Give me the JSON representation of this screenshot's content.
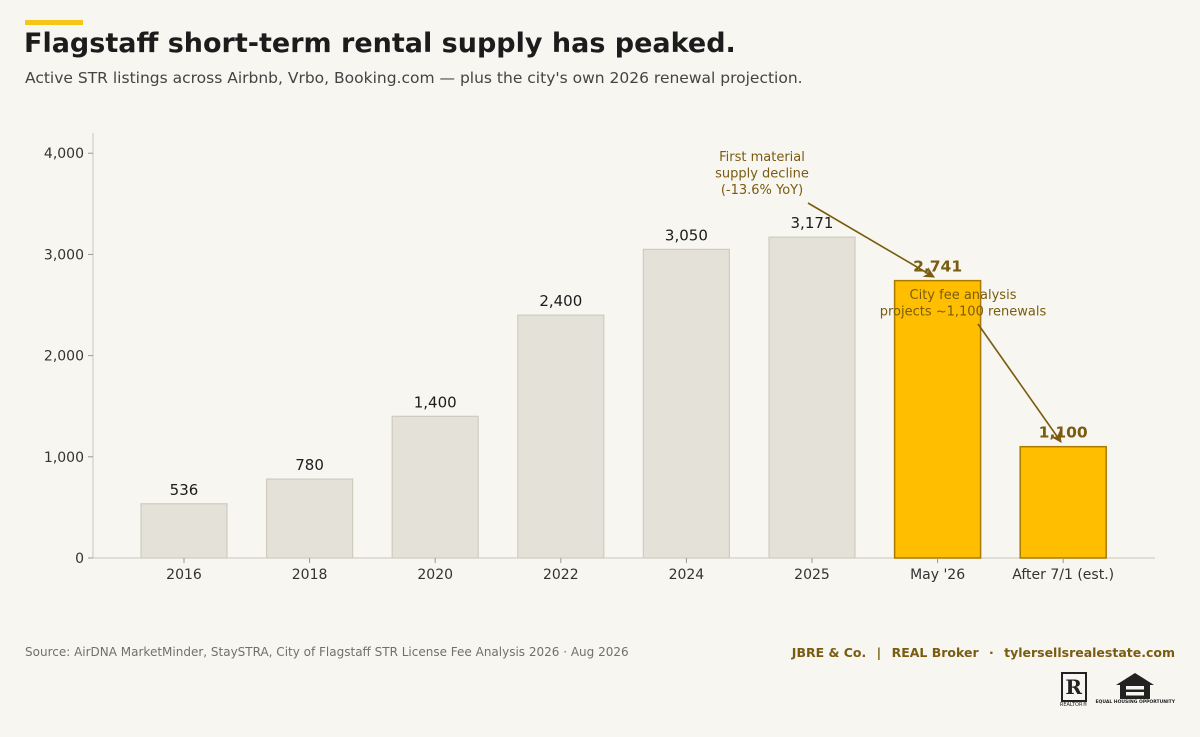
{
  "header": {
    "title": "Flagstaff short-term rental supply has peaked.",
    "subtitle": "Active STR listings across Airbnb, Vrbo, Booking.com — plus the city's own 2026 renewal projection."
  },
  "chart_data": {
    "type": "bar",
    "categories": [
      "2016",
      "2018",
      "2020",
      "2022",
      "2024",
      "2025",
      "May '26",
      "After 7/1 (est.)"
    ],
    "values": [
      536,
      780,
      1400,
      2400,
      3050,
      3171,
      2741,
      1100
    ],
    "value_labels": [
      "536",
      "780",
      "1,400",
      "2,400",
      "3,050",
      "3,171",
      "2,741",
      "1,100"
    ],
    "highlighted": [
      false,
      false,
      false,
      false,
      false,
      false,
      true,
      true
    ],
    "ylim": [
      0,
      4200
    ],
    "yticks": [
      0,
      1000,
      2000,
      3000,
      4000
    ],
    "ytick_labels": [
      "0",
      "1,000",
      "2,000",
      "3,000",
      "4,000"
    ],
    "grid": false,
    "annotations": [
      {
        "lines": [
          "First material",
          "supply decline",
          "(-13.6% YoY)"
        ],
        "target_category": "May '26"
      },
      {
        "lines": [
          "City fee analysis",
          "projects ~1,100 renewals"
        ],
        "target_category": "After 7/1 (est.)"
      }
    ]
  },
  "footer": {
    "source": "Source: AirDNA MarketMinder, StaySTRA, City of Flagstaff STR License Fee Analysis 2026 · Aug 2026",
    "brand_name": "JBRE & Co.",
    "brand_sep1": "|",
    "brand_broker": "REAL Broker",
    "brand_sep2": "·",
    "brand_site": "tylersellsrealestate.com"
  },
  "logos": {
    "realtor_letter": "R",
    "realtor_caption": "REALTOR®",
    "eho_caption": "EQUAL HOUSING OPPORTUNITY"
  },
  "colors": {
    "background": "#f7f6f0",
    "bar_default": "#e4e2d8",
    "bar_default_stroke": "#cfccbf",
    "bar_highlight": "#ffbf00",
    "bar_highlight_stroke": "#a87a00",
    "annotation": "#7a5c10",
    "accent": "#f5c518"
  }
}
